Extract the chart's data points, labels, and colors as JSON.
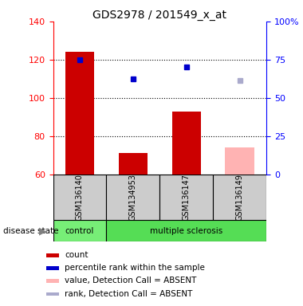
{
  "title": "GDS2978 / 201549_x_at",
  "samples": [
    "GSM136140",
    "GSM134953",
    "GSM136147",
    "GSM136149"
  ],
  "bar_values": [
    124,
    71,
    93,
    74
  ],
  "bar_colors": [
    "#cc0000",
    "#cc0000",
    "#cc0000",
    "#ffb3b3"
  ],
  "bar_bottom": 60,
  "dot_values": [
    120,
    110,
    116,
    109
  ],
  "dot_colors": [
    "#0000cc",
    "#0000cc",
    "#0000cc",
    "#aaaacc"
  ],
  "ylim_left": [
    60,
    140
  ],
  "ylim_right": [
    0,
    100
  ],
  "yticks_left": [
    60,
    80,
    100,
    120,
    140
  ],
  "yticks_right": [
    0,
    25,
    50,
    75,
    100
  ],
  "ytick_labels_right": [
    "0",
    "25",
    "50",
    "75",
    "100%"
  ],
  "grid_yticks": [
    80,
    100,
    120
  ],
  "legend_items": [
    {
      "color": "#cc0000",
      "label": "count"
    },
    {
      "color": "#0000cc",
      "label": "percentile rank within the sample"
    },
    {
      "color": "#ffb3b3",
      "label": "value, Detection Call = ABSENT"
    },
    {
      "color": "#aaaacc",
      "label": "rank, Detection Call = ABSENT"
    }
  ],
  "disease_state_label": "disease state",
  "label_area_color": "#cccccc",
  "ctrl_color": "#77ee77",
  "ms_color": "#55dd55"
}
